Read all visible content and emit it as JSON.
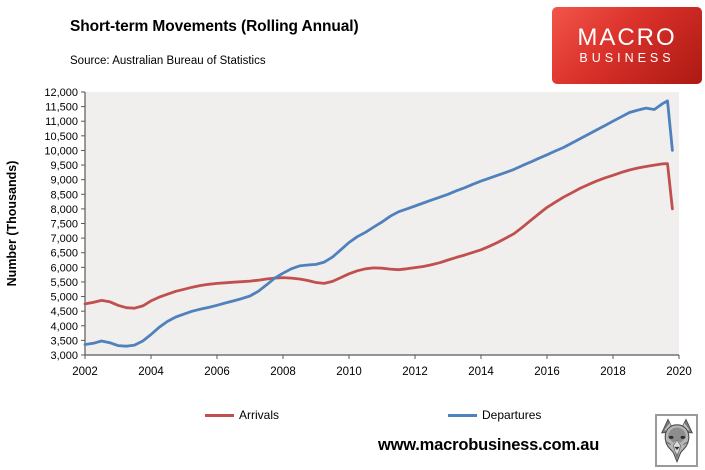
{
  "header": {
    "title": "Short-term Movements (Rolling Annual)",
    "source": "Source: Australian Bureau of Statistics"
  },
  "logo": {
    "line1": "MACRO",
    "line2": "BUSINESS",
    "bg_color": "#d9302a",
    "text_color": "#ffffff"
  },
  "footer": {
    "website": "www.macrobusiness.com.au"
  },
  "chart_data": {
    "type": "line",
    "title": "Short-term Movements (Rolling Annual)",
    "xlabel": "",
    "ylabel": "Number (Thousands)",
    "ylim": [
      3000,
      12000
    ],
    "ytick_step": 500,
    "xlim": [
      2002,
      2020
    ],
    "xticks": [
      2002,
      2004,
      2006,
      2008,
      2010,
      2012,
      2014,
      2016,
      2018,
      2020
    ],
    "grid": false,
    "plot_bg": "#f0efee",
    "axis_color": "#595959",
    "legend_position": "bottom",
    "x": [
      2002,
      2002.25,
      2002.5,
      2002.75,
      2003,
      2003.25,
      2003.5,
      2003.75,
      2004,
      2004.25,
      2004.5,
      2004.75,
      2005,
      2005.25,
      2005.5,
      2005.75,
      2006,
      2006.25,
      2006.5,
      2006.75,
      2007,
      2007.25,
      2007.5,
      2007.75,
      2008,
      2008.25,
      2008.5,
      2008.75,
      2009,
      2009.25,
      2009.5,
      2009.75,
      2010,
      2010.25,
      2010.5,
      2010.75,
      2011,
      2011.25,
      2011.5,
      2011.75,
      2012,
      2012.25,
      2012.5,
      2012.75,
      2013,
      2013.25,
      2013.5,
      2013.75,
      2014,
      2014.25,
      2014.5,
      2014.75,
      2015,
      2015.25,
      2015.5,
      2015.75,
      2016,
      2016.25,
      2016.5,
      2016.75,
      2017,
      2017.25,
      2017.5,
      2017.75,
      2018,
      2018.25,
      2018.5,
      2018.75,
      2019,
      2019.25,
      2019.5,
      2019.65,
      2019.8
    ],
    "series": [
      {
        "name": "Arrivals",
        "color": "#c0504d",
        "values": [
          4750,
          4800,
          4870,
          4820,
          4700,
          4620,
          4600,
          4680,
          4850,
          4980,
          5080,
          5180,
          5250,
          5320,
          5380,
          5420,
          5450,
          5470,
          5490,
          5510,
          5530,
          5560,
          5600,
          5630,
          5650,
          5630,
          5600,
          5550,
          5480,
          5450,
          5520,
          5650,
          5780,
          5880,
          5950,
          5980,
          5970,
          5940,
          5920,
          5950,
          5990,
          6030,
          6090,
          6160,
          6250,
          6340,
          6420,
          6510,
          6600,
          6720,
          6850,
          7000,
          7150,
          7370,
          7600,
          7830,
          8050,
          8230,
          8400,
          8550,
          8700,
          8830,
          8950,
          9060,
          9150,
          9250,
          9330,
          9400,
          9450,
          9500,
          9540,
          9550,
          8000
        ]
      },
      {
        "name": "Departures",
        "color": "#4f81bd",
        "values": [
          3360,
          3400,
          3480,
          3420,
          3320,
          3300,
          3340,
          3480,
          3700,
          3950,
          4150,
          4300,
          4400,
          4500,
          4570,
          4630,
          4700,
          4780,
          4850,
          4930,
          5020,
          5180,
          5400,
          5630,
          5800,
          5950,
          6050,
          6080,
          6100,
          6180,
          6350,
          6600,
          6850,
          7050,
          7200,
          7380,
          7550,
          7750,
          7900,
          8000,
          8100,
          8200,
          8300,
          8400,
          8500,
          8620,
          8720,
          8840,
          8950,
          9050,
          9150,
          9250,
          9350,
          9480,
          9600,
          9730,
          9850,
          9980,
          10100,
          10250,
          10400,
          10550,
          10700,
          10850,
          11000,
          11150,
          11300,
          11380,
          11450,
          11400,
          11600,
          11700,
          10000
        ]
      }
    ]
  }
}
